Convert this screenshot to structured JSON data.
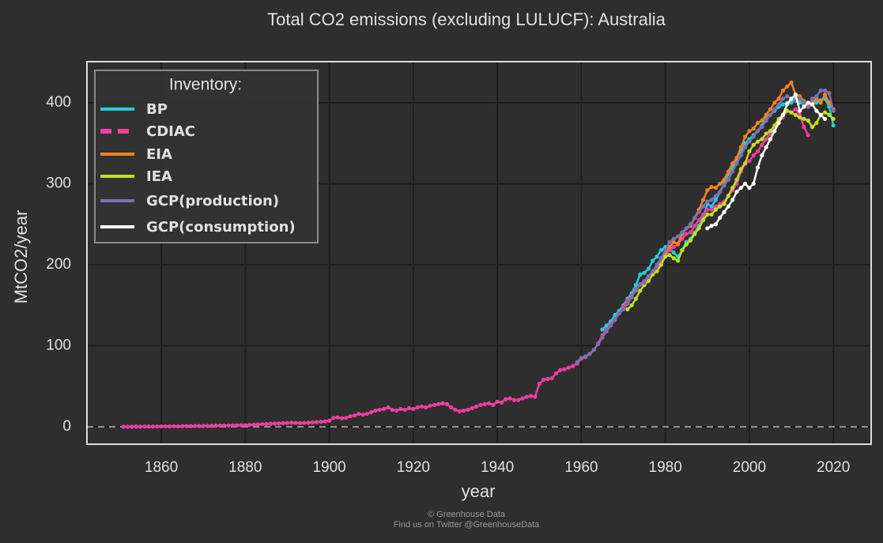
{
  "chart_data": {
    "type": "line",
    "title": "Total CO2 emissions (excluding LULUCF): Australia",
    "x_label": "year",
    "y_label": "MtCO2/year",
    "legend_title": "Inventory:",
    "legend": "upper left",
    "grid": true,
    "reference_line": 0,
    "xlim": [
      1842.3,
      2029
    ],
    "ylim": [
      -21.5,
      450.7
    ],
    "xticks": [
      1860,
      1880,
      1900,
      1920,
      1940,
      1960,
      1980,
      2000,
      2020
    ],
    "yticks": [
      0,
      100,
      200,
      300,
      400
    ],
    "series": [
      {
        "name": "BP",
        "color": "#1fd0d8",
        "x": [
          1965,
          1966,
          1967,
          1968,
          1969,
          1970,
          1971,
          1972,
          1973,
          1974,
          1975,
          1976,
          1977,
          1978,
          1979,
          1980,
          1981,
          1982,
          1983,
          1984,
          1985,
          1986,
          1987,
          1988,
          1989,
          1990,
          1991,
          1992,
          1993,
          1994,
          1995,
          1996,
          1997,
          1998,
          1999,
          2000,
          2001,
          2002,
          2003,
          2004,
          2005,
          2006,
          2007,
          2008,
          2009,
          2010,
          2011,
          2012,
          2013,
          2014,
          2015,
          2016,
          2017,
          2018,
          2019,
          2020
        ],
        "values": [
          120,
          125,
          130,
          138,
          143,
          150,
          158,
          165,
          175,
          188,
          190,
          195,
          205,
          210,
          218,
          222,
          220,
          215,
          210,
          218,
          228,
          232,
          240,
          248,
          258,
          275,
          272,
          280,
          290,
          300,
          312,
          320,
          330,
          340,
          350,
          355,
          360,
          365,
          372,
          380,
          385,
          390,
          395,
          398,
          400,
          400,
          405,
          400,
          398,
          395,
          398,
          400,
          403,
          405,
          395,
          372
        ]
      },
      {
        "name": "CDIAC",
        "color": "#ee3fa0",
        "dashed": true,
        "x": [
          1851,
          1852,
          1853,
          1854,
          1855,
          1856,
          1857,
          1858,
          1859,
          1860,
          1861,
          1862,
          1863,
          1864,
          1865,
          1866,
          1867,
          1868,
          1869,
          1870,
          1871,
          1872,
          1873,
          1874,
          1875,
          1876,
          1877,
          1878,
          1879,
          1880,
          1881,
          1882,
          1883,
          1884,
          1885,
          1886,
          1887,
          1888,
          1889,
          1890,
          1891,
          1892,
          1893,
          1894,
          1895,
          1896,
          1897,
          1898,
          1899,
          1900,
          1901,
          1902,
          1903,
          1904,
          1905,
          1906,
          1907,
          1908,
          1909,
          1910,
          1911,
          1912,
          1913,
          1914,
          1915,
          1916,
          1917,
          1918,
          1919,
          1920,
          1921,
          1922,
          1923,
          1924,
          1925,
          1926,
          1927,
          1928,
          1929,
          1930,
          1931,
          1932,
          1933,
          1934,
          1935,
          1936,
          1937,
          1938,
          1939,
          1940,
          1941,
          1942,
          1943,
          1944,
          1945,
          1946,
          1947,
          1948,
          1949,
          1950,
          1951,
          1952,
          1953,
          1954,
          1955,
          1956,
          1957,
          1958,
          1959,
          1960,
          1961,
          1962,
          1963,
          1964,
          1965,
          1966,
          1967,
          1968,
          1969,
          1970,
          1971,
          1972,
          1973,
          1974,
          1975,
          1976,
          1977,
          1978,
          1979,
          1980,
          1981,
          1982,
          1983,
          1984,
          1985,
          1986,
          1987,
          1988,
          1989,
          1990,
          1991,
          1992,
          1993,
          1994,
          1995,
          1996,
          1997,
          1998,
          1999,
          2000,
          2001,
          2002,
          2003,
          2004,
          2005,
          2006,
          2007,
          2008,
          2009,
          2010,
          2011,
          2012,
          2013,
          2014
        ],
        "values": [
          0.1,
          0.1,
          0.1,
          0.2,
          0.2,
          0.3,
          0.3,
          0.3,
          0.4,
          0.5,
          0.5,
          0.5,
          0.6,
          0.6,
          0.7,
          0.8,
          0.8,
          0.9,
          1.0,
          1.0,
          1.1,
          1.2,
          1.3,
          1.4,
          1.5,
          1.6,
          1.7,
          1.8,
          1.9,
          2.0,
          2.3,
          2.6,
          2.9,
          3.2,
          3.5,
          3.8,
          4.0,
          4.2,
          4.5,
          4.8,
          5.0,
          4.8,
          4.6,
          4.8,
          5.0,
          5.4,
          5.8,
          6.2,
          6.6,
          7.5,
          11,
          11.5,
          10.5,
          11,
          13,
          14,
          16,
          15,
          16,
          18,
          20,
          21,
          22,
          24,
          21,
          20,
          22,
          21,
          23,
          22,
          24,
          25,
          24,
          26,
          27,
          28,
          29,
          28,
          24,
          21,
          19,
          20,
          21,
          23,
          25,
          27,
          28,
          29,
          27,
          31,
          30,
          34,
          35,
          33,
          33,
          35,
          37,
          38,
          37,
          53,
          58,
          59,
          60,
          66,
          70,
          71,
          73,
          75,
          78,
          84,
          86,
          90,
          95,
          103,
          113,
          120,
          127,
          133,
          140,
          148,
          156,
          162,
          168,
          176,
          180,
          186,
          192,
          198,
          204,
          212,
          218,
          222,
          225,
          232,
          238,
          240,
          248,
          255,
          262,
          268,
          268,
          272,
          275,
          278,
          285,
          292,
          300,
          315,
          325,
          328,
          335,
          340,
          348,
          355,
          362,
          368,
          376,
          382,
          390,
          388,
          392,
          385,
          370,
          360
        ]
      },
      {
        "name": "EIA",
        "color": "#f5821f",
        "x": [
          1980,
          1981,
          1982,
          1983,
          1984,
          1985,
          1986,
          1987,
          1988,
          1989,
          1990,
          1991,
          1992,
          1993,
          1994,
          1995,
          1996,
          1997,
          1998,
          1999,
          2000,
          2001,
          2002,
          2003,
          2004,
          2005,
          2006,
          2007,
          2008,
          2009,
          2010,
          2011,
          2012,
          2013,
          2014,
          2015,
          2016,
          2017,
          2018,
          2019,
          2020
        ],
        "values": [
          215,
          222,
          228,
          226,
          238,
          245,
          248,
          258,
          268,
          280,
          292,
          296,
          295,
          300,
          305,
          315,
          325,
          332,
          345,
          358,
          365,
          368,
          375,
          378,
          385,
          392,
          400,
          405,
          415,
          420,
          425,
          410,
          408,
          402,
          395,
          400,
          405,
          400,
          410,
          400,
          392
        ]
      },
      {
        "name": "IEA",
        "color": "#c0e020",
        "x": [
          1971,
          1972,
          1973,
          1974,
          1975,
          1976,
          1977,
          1978,
          1979,
          1980,
          1981,
          1982,
          1983,
          1984,
          1985,
          1986,
          1987,
          1988,
          1989,
          1990,
          1991,
          1992,
          1993,
          1994,
          1995,
          1996,
          1997,
          1998,
          1999,
          2000,
          2001,
          2002,
          2003,
          2004,
          2005,
          2006,
          2007,
          2008,
          2009,
          2010,
          2011,
          2012,
          2013,
          2014,
          2015,
          2016,
          2017,
          2018,
          2019,
          2020
        ],
        "values": [
          145,
          150,
          158,
          168,
          175,
          180,
          188,
          192,
          200,
          210,
          212,
          208,
          205,
          218,
          225,
          230,
          238,
          245,
          255,
          262,
          262,
          268,
          272,
          275,
          285,
          295,
          305,
          318,
          325,
          340,
          348,
          352,
          355,
          362,
          365,
          372,
          380,
          385,
          390,
          388,
          385,
          382,
          380,
          378,
          370,
          375,
          385,
          388,
          385,
          380
        ]
      },
      {
        "name": "GCP(production)",
        "color": "#7f6fb5",
        "x": [
          1959,
          1960,
          1961,
          1962,
          1963,
          1964,
          1965,
          1966,
          1967,
          1968,
          1969,
          1970,
          1971,
          1972,
          1973,
          1974,
          1975,
          1976,
          1977,
          1978,
          1979,
          1980,
          1981,
          1982,
          1983,
          1984,
          1985,
          1986,
          1987,
          1988,
          1989,
          1990,
          1991,
          1992,
          1993,
          1994,
          1995,
          1996,
          1997,
          1998,
          1999,
          2000,
          2001,
          2002,
          2003,
          2004,
          2005,
          2006,
          2007,
          2008,
          2009,
          2010,
          2011,
          2012,
          2013,
          2014,
          2015,
          2016,
          2017,
          2018,
          2019,
          2020
        ],
        "values": [
          80,
          85,
          87,
          90,
          95,
          102,
          110,
          118,
          125,
          132,
          140,
          145,
          152,
          160,
          170,
          175,
          178,
          185,
          192,
          200,
          208,
          218,
          228,
          232,
          235,
          240,
          245,
          250,
          258,
          265,
          272,
          278,
          280,
          285,
          290,
          298,
          305,
          315,
          325,
          335,
          345,
          352,
          358,
          365,
          370,
          378,
          385,
          392,
          398,
          405,
          408,
          405,
          402,
          405,
          400,
          395,
          405,
          408,
          415,
          415,
          412,
          390
        ]
      },
      {
        "name": "GCP(consumption)",
        "color": "#ffffff",
        "x": [
          1990,
          1991,
          1992,
          1993,
          1994,
          1995,
          1996,
          1997,
          1998,
          1999,
          2000,
          2001,
          2002,
          2003,
          2004,
          2005,
          2006,
          2007,
          2008,
          2009,
          2010,
          2011,
          2012,
          2013,
          2014,
          2015,
          2016,
          2017,
          2018
        ],
        "values": [
          245,
          248,
          250,
          258,
          265,
          272,
          280,
          290,
          295,
          300,
          295,
          300,
          320,
          335,
          345,
          355,
          365,
          375,
          385,
          398,
          405,
          410,
          390,
          395,
          400,
          398,
          390,
          385,
          380
        ]
      }
    ]
  },
  "footer": {
    "copyright": "© Greenhouse Data",
    "social": "Find us on Twitter @GreenhouseData"
  }
}
